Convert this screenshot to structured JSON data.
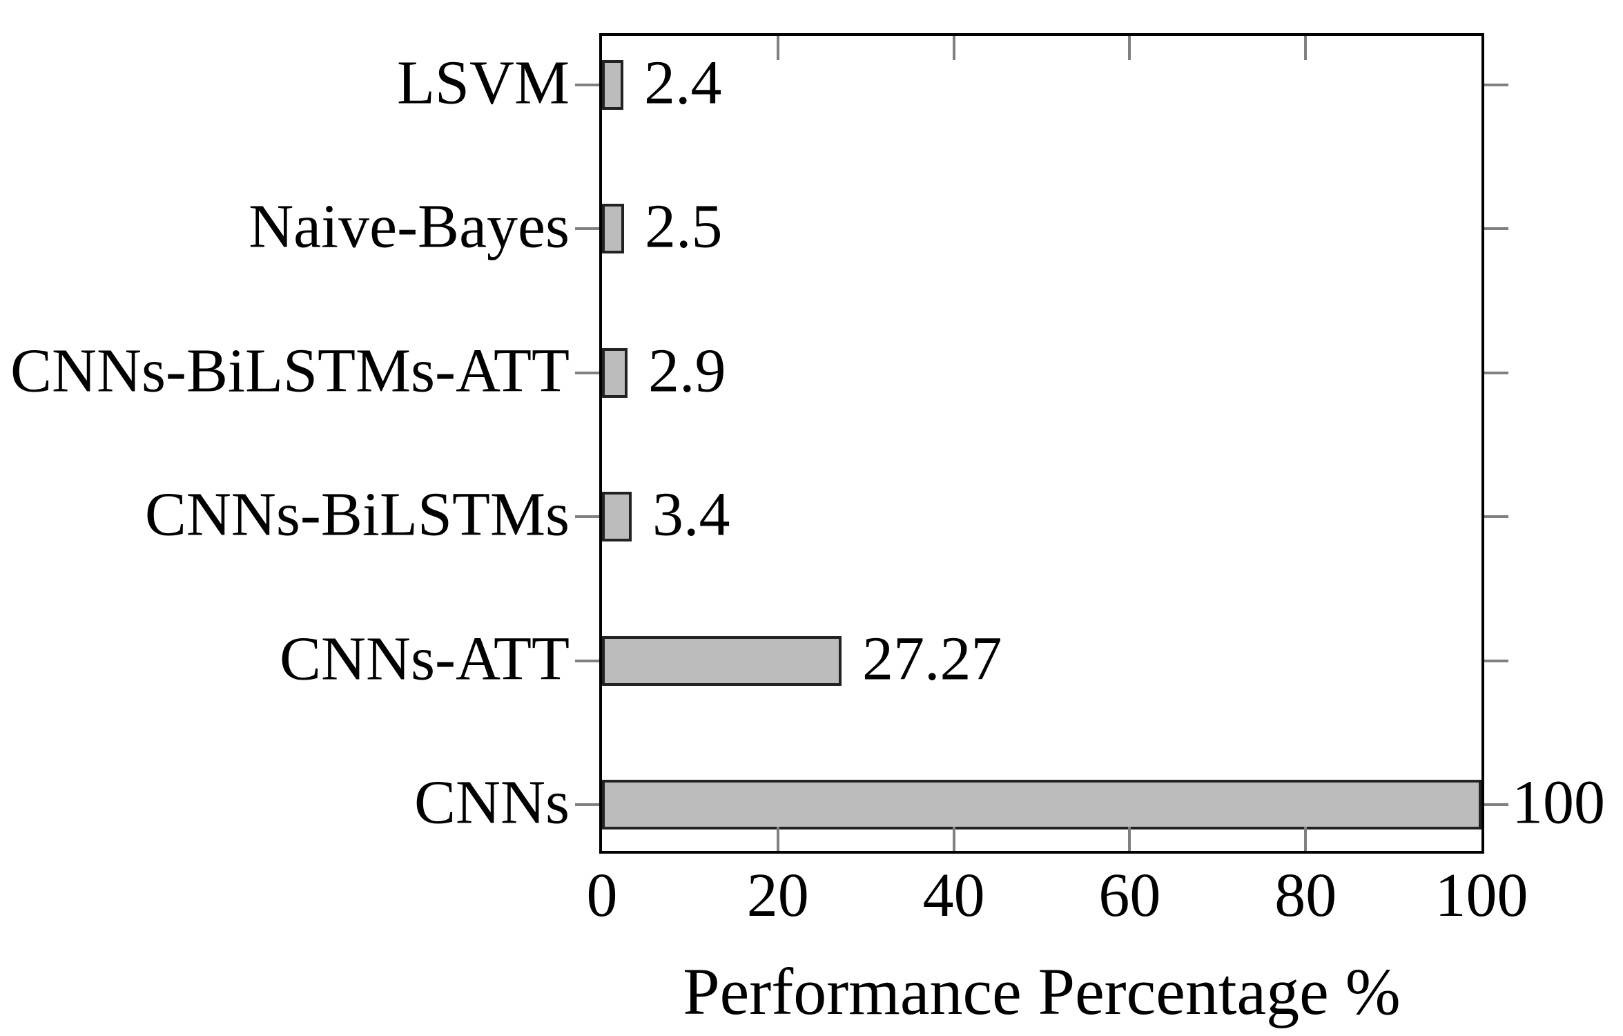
{
  "chart_data": {
    "type": "bar",
    "orientation": "horizontal",
    "title": "",
    "xlabel": "Performance Percentage %",
    "ylabel": "",
    "categories": [
      "LSVM",
      "Naive-Bayes",
      "CNNs-BiLSTMs-ATT",
      "CNNs-BiLSTMs",
      "CNNs-ATT",
      "CNNs"
    ],
    "values": [
      2.4,
      2.5,
      2.9,
      3.4,
      27.27,
      100
    ],
    "value_labels": [
      "2.4",
      "2.5",
      "2.9",
      "3.4",
      "27.27",
      "100"
    ],
    "xlim": [
      0,
      100
    ],
    "xticks": [
      0,
      20,
      40,
      60,
      80,
      100
    ],
    "xtick_labels": [
      "0",
      "20",
      "40",
      "60",
      "80",
      "100"
    ],
    "grid": false,
    "legend_position": "none",
    "colors": {
      "bar_fill": "#bcbcbc",
      "bar_border": "#222222",
      "axis_border": "#000000",
      "tick": "#808080",
      "text": "#000000",
      "background": "#ffffff"
    }
  }
}
